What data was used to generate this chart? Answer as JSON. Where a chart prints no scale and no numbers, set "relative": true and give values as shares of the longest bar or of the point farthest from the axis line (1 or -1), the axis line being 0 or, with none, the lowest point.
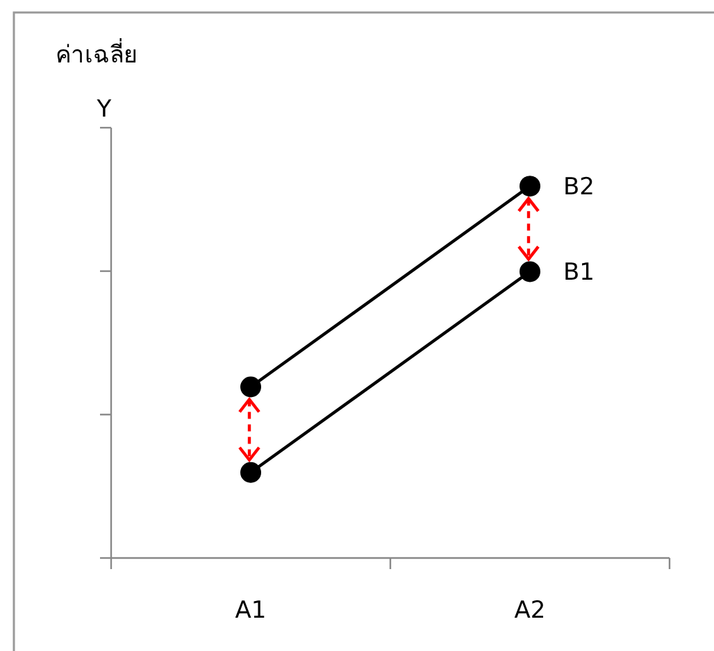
{
  "chart_data": {
    "type": "line",
    "title": "ค่าเฉลี่ย",
    "ylabel": "Y",
    "relative": true,
    "categories": [
      "A1",
      "A2"
    ],
    "series": [
      {
        "name": "B1",
        "color": "#000000",
        "values": [
          0.23,
          0.77
        ]
      },
      {
        "name": "B2",
        "color": "#000000",
        "values": [
          0.46,
          1
        ]
      }
    ],
    "marker": "circle",
    "line_style": "solid",
    "legend": false
  }
}
